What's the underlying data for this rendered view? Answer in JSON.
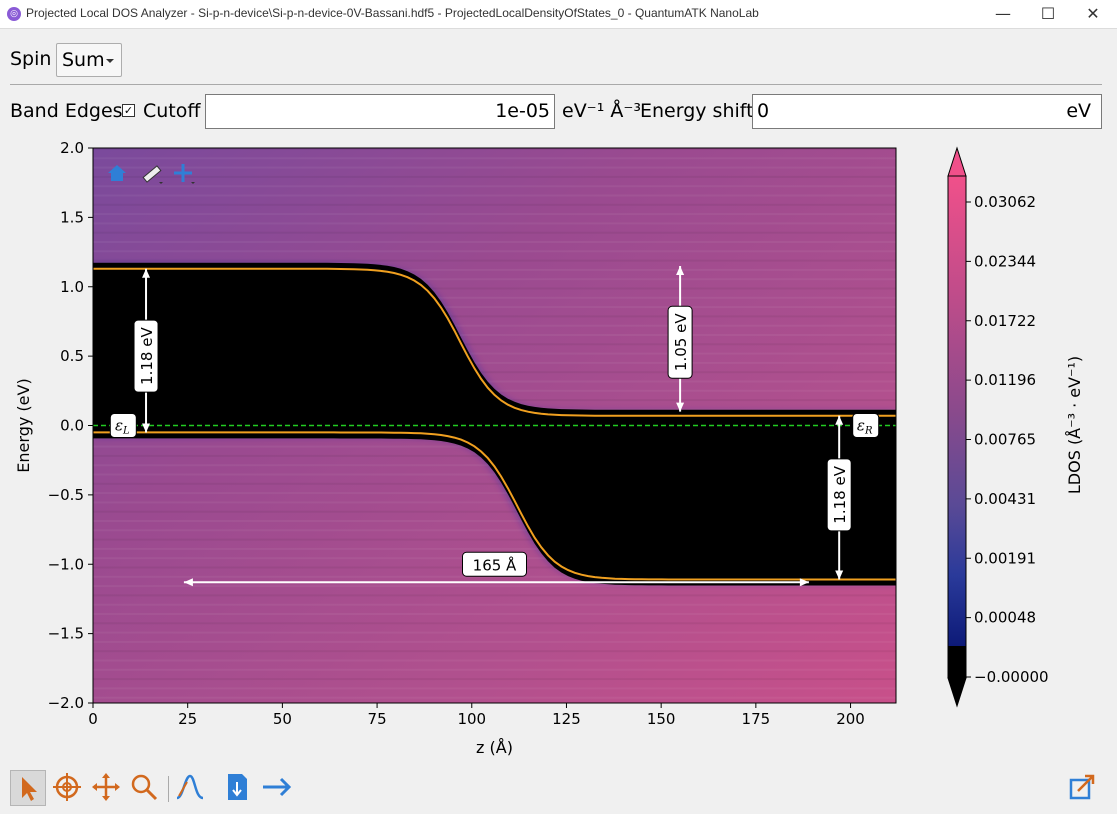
{
  "window": {
    "title": "Projected Local DOS Analyzer - Si-p-n-device\\Si-p-n-device-0V-Bassani.hdf5 - ProjectedLocalDensityOfStates_0 - QuantumATK NanoLab",
    "minimize": "—",
    "maximize": "☐",
    "close": "✕"
  },
  "spin": {
    "label": "Spin",
    "value": "Sum"
  },
  "options": {
    "band_edges_label": "Band Edges",
    "band_edges_checked": "✓",
    "cutoff_label": "Cutoff",
    "cutoff_value": "1e-05",
    "cutoff_unit": "eV⁻¹ Å⁻³",
    "energy_shift_label": "Energy shift",
    "energy_shift_value": "0",
    "energy_shift_unit": "eV"
  },
  "plot_nav_icons": [
    "home-icon",
    "ruler-icon",
    "crosshair-plus-icon"
  ],
  "chart_data": {
    "type": "heatmap",
    "xlabel": "z (Å)",
    "ylabel": "Energy (eV)",
    "xlim": [
      0,
      212
    ],
    "ylim": [
      -2.0,
      2.0
    ],
    "xticks": [
      "0",
      "25",
      "50",
      "75",
      "100",
      "125",
      "150",
      "175",
      "200"
    ],
    "yticks": [
      "2.0",
      "1.5",
      "1.0",
      "0.5",
      "0.0",
      "−0.5",
      "−1.0",
      "−1.5",
      "−2.0"
    ],
    "colorbar": {
      "label": "LDOS (Å⁻³ · eV⁻¹)",
      "ticks": [
        "0.03062",
        "0.02344",
        "0.01722",
        "0.01196",
        "0.00765",
        "0.00431",
        "0.00191",
        "0.00048",
        "−0.00000"
      ],
      "colors": [
        "#000000",
        "#0d1a78",
        "#3a3f9a",
        "#5a4a96",
        "#8a4a8c",
        "#b04a8a",
        "#d2508a",
        "#e85a8f",
        "#f0508a"
      ]
    },
    "band_edges": {
      "conduction": {
        "left": 1.13,
        "right": 0.07,
        "transition_center": 97,
        "transition_width": 20
      },
      "valence": {
        "left": -0.05,
        "right": -1.11,
        "transition_center": 112,
        "transition_width": 20
      },
      "color": "#f0a020"
    },
    "fermi_level": {
      "energy": 0.0,
      "color": "#22cc22"
    },
    "annotations": [
      {
        "text": "1.18 eV",
        "arrow": "vertical",
        "x": 14,
        "y_from": -0.05,
        "y_to": 1.13,
        "label_y": 0.5
      },
      {
        "text": "1.05 eV",
        "arrow": "vertical",
        "x": 155,
        "y_from": 0.1,
        "y_to": 1.15,
        "label_y": 0.6
      },
      {
        "text": "1.18 eV",
        "arrow": "vertical",
        "x": 197,
        "y_from": -1.11,
        "y_to": 0.07,
        "label_y": -0.5
      },
      {
        "text": "165 Å",
        "arrow": "horizontal",
        "y": -1.13,
        "x_from": 24,
        "x_to": 189,
        "label_x": 106,
        "label_y": -1.0
      }
    ],
    "level_labels": [
      {
        "text": "ε",
        "sub": "L",
        "x": 8,
        "y": 0.0
      },
      {
        "text": "ε",
        "sub": "R",
        "x": 204,
        "y": 0.0
      }
    ]
  },
  "bottom_tools": [
    {
      "name": "pointer-tool-icon",
      "active": true
    },
    {
      "name": "target-tool-icon",
      "active": false
    },
    {
      "name": "pan-tool-icon",
      "active": false
    },
    {
      "name": "zoom-tool-icon",
      "active": false
    },
    {
      "name": "peak-tool-icon",
      "active": false
    },
    {
      "name": "export-file-icon",
      "active": false
    },
    {
      "name": "forward-arrow-icon",
      "active": false
    }
  ]
}
